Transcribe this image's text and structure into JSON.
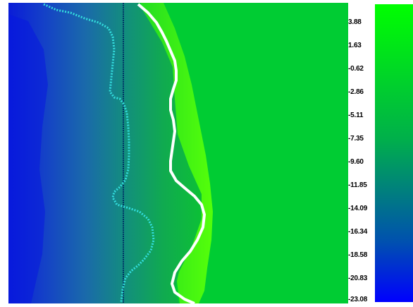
{
  "chart_data": {
    "type": "heatmap",
    "title": "",
    "xlabel": "",
    "ylabel": "",
    "colorbar": {
      "ticks": [
        "3.88",
        "1.63",
        "-0.62",
        "-2.86",
        "-5.11",
        "-7.35",
        "-9.60",
        "-11.85",
        "-14.09",
        "-16.34",
        "-18.58",
        "-20.83",
        "-23.08"
      ],
      "colors": [
        "#00ff00",
        "#00cc33",
        "#00a060",
        "#0070a0",
        "#0000ff"
      ],
      "min": -23.08,
      "max": 3.88
    },
    "background_value": 3.88,
    "colors": {
      "background": "#00cc33",
      "contour_white": "#ffffff",
      "contour_cyan": "#33dddd",
      "vertical_line": "#003366"
    }
  }
}
